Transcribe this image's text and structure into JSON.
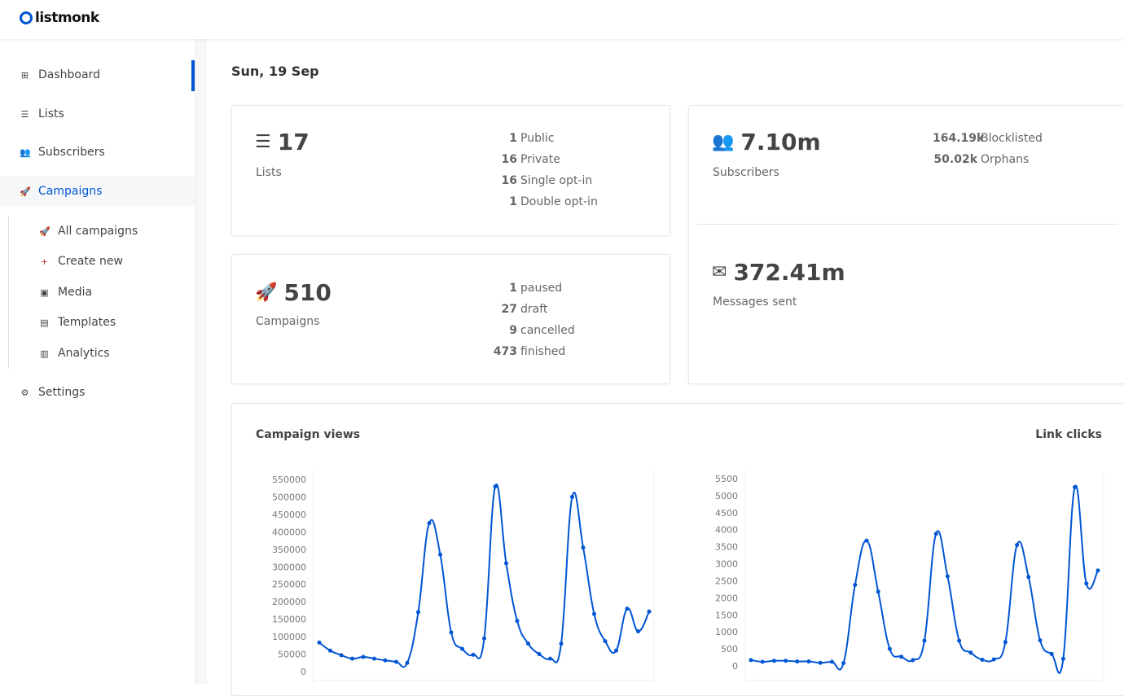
{
  "app": {
    "name": "listmonk"
  },
  "sidebar": {
    "items": [
      {
        "label": "Dashboard",
        "icon": "dashboard-icon"
      },
      {
        "label": "Lists",
        "icon": "list-icon"
      },
      {
        "label": "Subscribers",
        "icon": "users-icon"
      },
      {
        "label": "Campaigns",
        "icon": "rocket-icon"
      },
      {
        "label": "Settings",
        "icon": "gear-icon"
      }
    ],
    "campaign_subitems": [
      {
        "label": "All campaigns",
        "icon": "rocket-icon"
      },
      {
        "label": "Create new",
        "icon": "plus-icon"
      },
      {
        "label": "Media",
        "icon": "image-icon"
      },
      {
        "label": "Templates",
        "icon": "file-image-icon"
      },
      {
        "label": "Analytics",
        "icon": "bar-chart-icon"
      }
    ]
  },
  "accent": "#0055d4",
  "date": "Sun, 19 Sep",
  "lists": {
    "count": "17",
    "label": "Lists",
    "stats": [
      {
        "n": "1",
        "label": "Public"
      },
      {
        "n": "16",
        "label": "Private"
      },
      {
        "n": "16",
        "label": "Single opt-in"
      },
      {
        "n": "1",
        "label": "Double opt-in"
      }
    ]
  },
  "campaigns": {
    "count": "510",
    "label": "Campaigns",
    "stats": [
      {
        "n": "1",
        "label": "paused"
      },
      {
        "n": "27",
        "label": "draft"
      },
      {
        "n": "9",
        "label": "cancelled"
      },
      {
        "n": "473",
        "label": "finished"
      }
    ]
  },
  "subscribers": {
    "count": "7.10m",
    "label": "Subscribers",
    "stats": [
      {
        "n": "164.19k",
        "label": "Blocklisted"
      },
      {
        "n": "50.02k",
        "label": "Orphans"
      }
    ]
  },
  "messages": {
    "count": "372.41m",
    "label": "Messages sent"
  },
  "chart_data": [
    {
      "type": "line",
      "title": "Campaign views",
      "ylim": [
        0,
        550000
      ],
      "yticks": [
        "0",
        "50000",
        "100000",
        "150000",
        "200000",
        "250000",
        "300000",
        "350000",
        "400000",
        "450000",
        "500000",
        "550000"
      ],
      "values": [
        83000,
        60000,
        47000,
        37000,
        42000,
        37000,
        32000,
        28000,
        25000,
        170000,
        425000,
        335000,
        112000,
        65000,
        48000,
        95000,
        530000,
        310000,
        145000,
        80000,
        50000,
        37000,
        80000,
        500000,
        355000,
        165000,
        87000,
        60000,
        180000,
        115000,
        172000
      ]
    },
    {
      "type": "line",
      "title": "Link clicks",
      "ylim": [
        0,
        5500
      ],
      "yticks": [
        "0",
        "500",
        "1000",
        "1500",
        "2000",
        "2500",
        "3000",
        "3500",
        "4000",
        "4500",
        "5000",
        "5500"
      ],
      "values": [
        170,
        120,
        150,
        150,
        130,
        130,
        90,
        120,
        80,
        2380,
        3680,
        2180,
        500,
        270,
        170,
        740,
        3880,
        2630,
        740,
        390,
        180,
        190,
        700,
        3550,
        2610,
        750,
        350,
        210,
        5250,
        2420,
        2800
      ]
    }
  ]
}
